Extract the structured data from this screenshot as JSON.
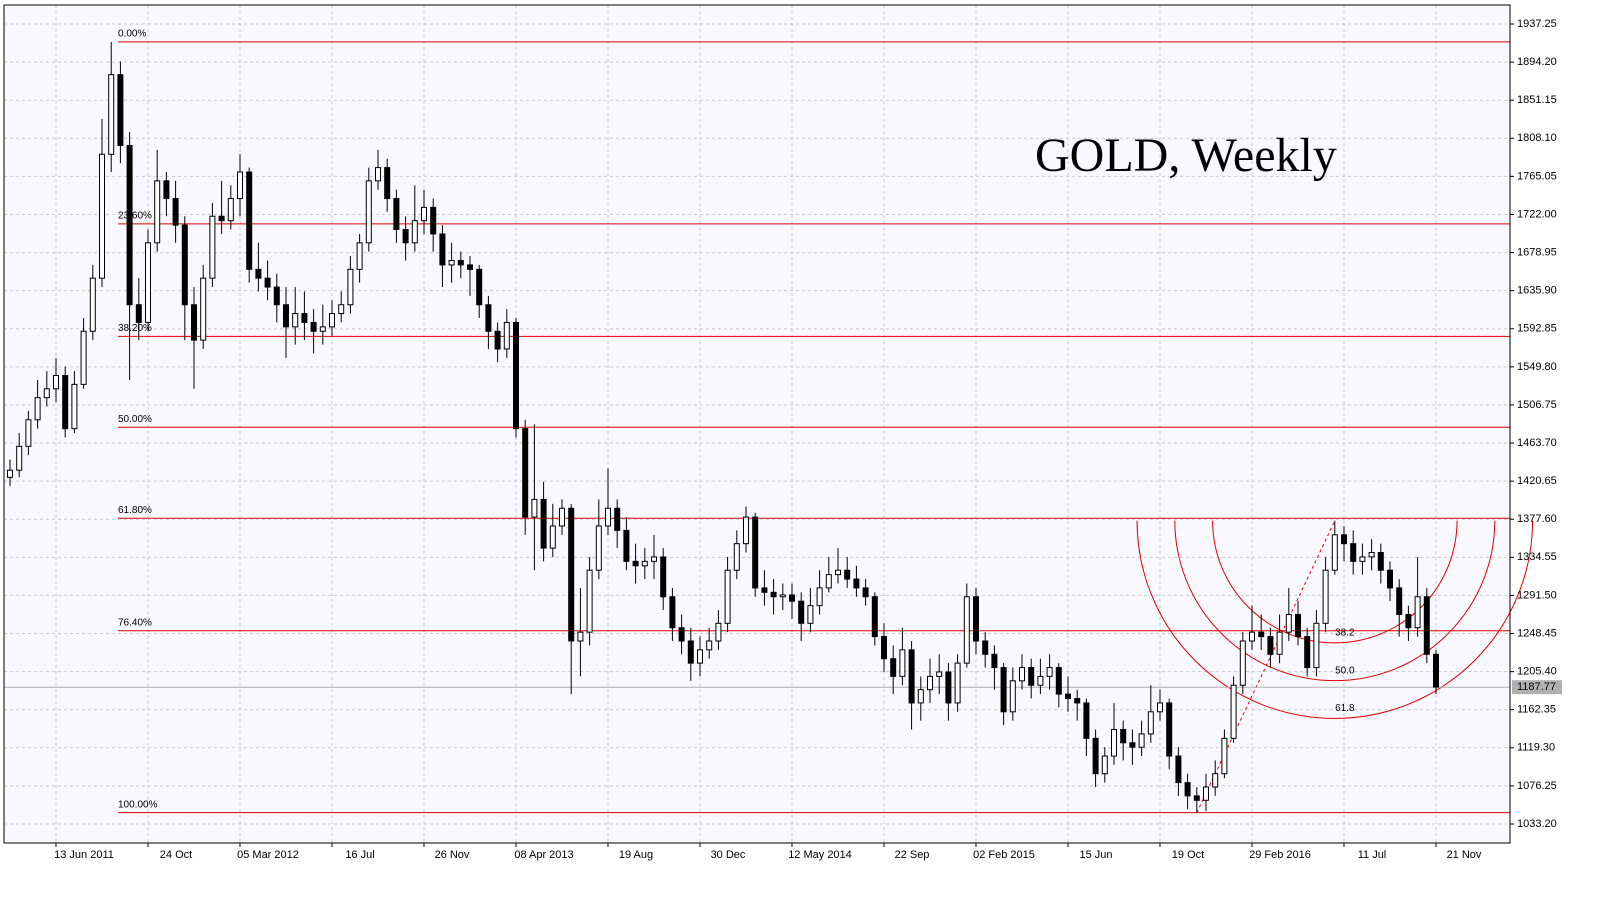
{
  "chart_data": {
    "type": "candlestick",
    "title": "GOLD, Weekly",
    "categories": [
      null,
      null,
      null,
      null,
      null,
      "13 Jun 2011",
      null,
      null,
      null,
      null,
      null,
      null,
      null,
      null,
      null,
      "24 Oct",
      null,
      null,
      null,
      null,
      null,
      null,
      null,
      null,
      null,
      "05 Mar 2012",
      null,
      null,
      null,
      null,
      null,
      null,
      null,
      null,
      null,
      "16 Jul",
      null,
      null,
      null,
      null,
      null,
      null,
      null,
      null,
      null,
      "26 Nov",
      null,
      null,
      null,
      null,
      null,
      null,
      null,
      null,
      null,
      "08 Apr 2013",
      null,
      null,
      null,
      null,
      null,
      null,
      null,
      null,
      null,
      "19 Aug",
      null,
      null,
      null,
      null,
      null,
      null,
      null,
      null,
      null,
      "30 Dec",
      null,
      null,
      null,
      null,
      null,
      null,
      null,
      null,
      null,
      "12 May 2014",
      null,
      null,
      null,
      null,
      null,
      null,
      null,
      null,
      null,
      "22 Sep",
      null,
      null,
      null,
      null,
      null,
      null,
      null,
      null,
      null,
      "02 Feb 2015",
      null,
      null,
      null,
      null,
      null,
      null,
      null,
      null,
      null,
      "15 Jun",
      null,
      null,
      null,
      null,
      null,
      null,
      null,
      null,
      null,
      "19 Oct",
      null,
      null,
      null,
      null,
      null,
      null,
      null,
      null,
      null,
      "29 Feb 2016",
      null,
      null,
      null,
      null,
      null,
      null,
      null,
      null,
      null,
      "11 Jul",
      null,
      null,
      null,
      null,
      null,
      null,
      null,
      null,
      null,
      "21 Nov"
    ],
    "open": [
      1425,
      1433,
      1460,
      1490,
      1515,
      1525,
      1540,
      1480,
      1530,
      1590,
      1650,
      1790,
      1880,
      1800,
      1620,
      1600,
      1690,
      1760,
      1740,
      1710,
      1620,
      1580,
      1650,
      1720,
      1715,
      1740,
      1770,
      1660,
      1650,
      1640,
      1620,
      1595,
      1610,
      1600,
      1590,
      1595,
      1610,
      1620,
      1660,
      1690,
      1760,
      1775,
      1740,
      1705,
      1690,
      1715,
      1730,
      1700,
      1665,
      1670,
      1665,
      1660,
      1620,
      1590,
      1570,
      1600,
      1480,
      1380,
      1400,
      1345,
      1370,
      1390,
      1240,
      1250,
      1320,
      1370,
      1390,
      1365,
      1330,
      1325,
      1330,
      1335,
      1290,
      1255,
      1240,
      1215,
      1230,
      1240,
      1260,
      1320,
      1350,
      1380,
      1300,
      1295,
      1290,
      1292,
      1285,
      1260,
      1280,
      1300,
      1315,
      1320,
      1310,
      1300,
      1290,
      1245,
      1220,
      1200,
      1230,
      1170,
      1185,
      1200,
      1205,
      1170,
      1215,
      1290,
      1240,
      1225,
      1210,
      1160,
      1195,
      1210,
      1190,
      1200,
      1210,
      1180,
      1175,
      1170,
      1130,
      1090,
      1110,
      1140,
      1125,
      1120,
      1135,
      1160,
      1170,
      1110,
      1080,
      1065,
      1060,
      1075,
      1090,
      1130,
      1190,
      1240,
      1250,
      1245,
      1225,
      1250,
      1270,
      1245,
      1210,
      1260,
      1320,
      1360,
      1350,
      1330,
      1335,
      1340,
      1320,
      1300,
      1270,
      1255,
      1290,
      1225
    ],
    "high": [
      1445,
      1475,
      1500,
      1535,
      1545,
      1560,
      1550,
      1545,
      1605,
      1665,
      1830,
      1917,
      1895,
      1815,
      1650,
      1705,
      1795,
      1770,
      1760,
      1720,
      1640,
      1665,
      1735,
      1760,
      1755,
      1790,
      1775,
      1690,
      1670,
      1655,
      1640,
      1640,
      1635,
      1615,
      1620,
      1625,
      1635,
      1675,
      1700,
      1775,
      1795,
      1785,
      1750,
      1720,
      1755,
      1750,
      1740,
      1710,
      1690,
      1680,
      1675,
      1665,
      1630,
      1600,
      1615,
      1605,
      1490,
      1485,
      1420,
      1395,
      1400,
      1395,
      1300,
      1335,
      1400,
      1435,
      1400,
      1380,
      1350,
      1345,
      1360,
      1345,
      1300,
      1270,
      1255,
      1245,
      1255,
      1275,
      1335,
      1365,
      1392,
      1385,
      1320,
      1310,
      1305,
      1305,
      1295,
      1300,
      1320,
      1335,
      1345,
      1335,
      1325,
      1310,
      1295,
      1260,
      1235,
      1255,
      1240,
      1200,
      1220,
      1225,
      1215,
      1225,
      1305,
      1300,
      1250,
      1235,
      1215,
      1210,
      1225,
      1220,
      1220,
      1225,
      1215,
      1200,
      1185,
      1175,
      1140,
      1120,
      1170,
      1150,
      1140,
      1150,
      1190,
      1185,
      1175,
      1120,
      1090,
      1075,
      1090,
      1105,
      1140,
      1200,
      1250,
      1280,
      1270,
      1255,
      1270,
      1300,
      1285,
      1255,
      1275,
      1335,
      1376,
      1370,
      1365,
      1350,
      1355,
      1350,
      1330,
      1310,
      1280,
      1335,
      1300,
      1230
    ],
    "low": [
      1415,
      1425,
      1450,
      1480,
      1505,
      1510,
      1470,
      1475,
      1525,
      1580,
      1640,
      1770,
      1780,
      1535,
      1580,
      1590,
      1680,
      1720,
      1690,
      1580,
      1525,
      1570,
      1640,
      1700,
      1705,
      1720,
      1645,
      1635,
      1625,
      1600,
      1560,
      1575,
      1580,
      1565,
      1575,
      1585,
      1600,
      1610,
      1645,
      1680,
      1750,
      1725,
      1690,
      1670,
      1680,
      1700,
      1680,
      1640,
      1645,
      1650,
      1630,
      1605,
      1570,
      1555,
      1560,
      1470,
      1360,
      1320,
      1330,
      1335,
      1360,
      1180,
      1200,
      1235,
      1310,
      1360,
      1345,
      1320,
      1305,
      1310,
      1310,
      1275,
      1240,
      1225,
      1195,
      1200,
      1220,
      1230,
      1250,
      1310,
      1340,
      1290,
      1280,
      1270,
      1275,
      1265,
      1240,
      1250,
      1270,
      1295,
      1305,
      1300,
      1290,
      1280,
      1235,
      1205,
      1180,
      1190,
      1140,
      1150,
      1170,
      1180,
      1150,
      1160,
      1210,
      1225,
      1210,
      1185,
      1145,
      1150,
      1185,
      1175,
      1180,
      1185,
      1165,
      1160,
      1150,
      1110,
      1075,
      1080,
      1100,
      1105,
      1100,
      1110,
      1125,
      1150,
      1095,
      1065,
      1050,
      1046,
      1048,
      1065,
      1085,
      1125,
      1180,
      1230,
      1230,
      1210,
      1215,
      1240,
      1235,
      1200,
      1200,
      1250,
      1315,
      1330,
      1315,
      1315,
      1320,
      1305,
      1285,
      1245,
      1240,
      1245,
      1215,
      1180
    ],
    "close": [
      1433,
      1460,
      1490,
      1515,
      1525,
      1540,
      1480,
      1530,
      1590,
      1650,
      1790,
      1880,
      1800,
      1620,
      1600,
      1690,
      1760,
      1740,
      1710,
      1620,
      1580,
      1650,
      1720,
      1715,
      1740,
      1770,
      1660,
      1650,
      1640,
      1620,
      1595,
      1610,
      1600,
      1590,
      1595,
      1610,
      1620,
      1660,
      1690,
      1760,
      1775,
      1740,
      1705,
      1690,
      1715,
      1730,
      1700,
      1665,
      1670,
      1665,
      1660,
      1620,
      1590,
      1570,
      1600,
      1480,
      1380,
      1400,
      1345,
      1370,
      1390,
      1240,
      1250,
      1320,
      1370,
      1390,
      1365,
      1330,
      1325,
      1330,
      1335,
      1290,
      1255,
      1240,
      1215,
      1230,
      1240,
      1260,
      1320,
      1350,
      1380,
      1300,
      1295,
      1290,
      1292,
      1285,
      1260,
      1280,
      1300,
      1315,
      1320,
      1310,
      1300,
      1290,
      1245,
      1220,
      1200,
      1230,
      1170,
      1185,
      1200,
      1205,
      1170,
      1215,
      1290,
      1240,
      1225,
      1210,
      1160,
      1195,
      1210,
      1190,
      1200,
      1210,
      1180,
      1175,
      1170,
      1130,
      1090,
      1110,
      1140,
      1125,
      1120,
      1135,
      1160,
      1170,
      1110,
      1080,
      1065,
      1060,
      1075,
      1090,
      1130,
      1190,
      1240,
      1250,
      1245,
      1225,
      1250,
      1270,
      1245,
      1210,
      1260,
      1320,
      1360,
      1350,
      1330,
      1335,
      1340,
      1320,
      1300,
      1270,
      1255,
      1290,
      1225,
      1188
    ],
    "ylim": [
      1011.73,
      1958.72
    ],
    "yticks": [
      {
        "value": 1033.2,
        "label": "1033.20"
      },
      1076.25,
      {
        "value": 1119.3,
        "label": "1119.30"
      },
      1162.35,
      {
        "value": 1205.4,
        "label": "1205.40"
      },
      1248.45,
      {
        "value": 1291.5,
        "label": "1291.50"
      },
      1334.55,
      {
        "value": 1377.6,
        "label": "1377.60"
      },
      1420.65,
      {
        "value": 1463.7,
        "label": "1463.70"
      },
      1506.75,
      {
        "value": 1549.8,
        "label": "1549.80"
      },
      1592.85,
      {
        "value": 1635.9,
        "label": "1635.90"
      },
      1678.95,
      {
        "value": 1722,
        "label": "1722.00"
      },
      1765.05,
      {
        "value": 1808.1,
        "label": "1808.10"
      },
      1851.15,
      {
        "value": 1894.2,
        "label": "1894.20"
      },
      1937.25
    ],
    "grid": true,
    "last_price": 1187.77,
    "fib_retracement": {
      "high": 1917,
      "low": 1046,
      "color": "#e00000",
      "levels": [
        {
          "value": 0,
          "label": "0.00%"
        },
        {
          "value": 23.6,
          "label": "23.60%"
        },
        {
          "value": 38.2,
          "label": "38.20%"
        },
        {
          "value": 50,
          "label": "50.00%"
        },
        {
          "value": 61.8,
          "label": "61.80%"
        },
        {
          "value": 76.4,
          "label": "76.40%"
        },
        {
          "value": 100,
          "label": "100.00%"
        }
      ]
    },
    "fib_arcs": {
      "from": 1046,
      "to": 1376,
      "color": "#e00000",
      "levels": [
        38.2,
        {
          "value": 50,
          "label": "50.0"
        },
        61.8
      ]
    }
  }
}
